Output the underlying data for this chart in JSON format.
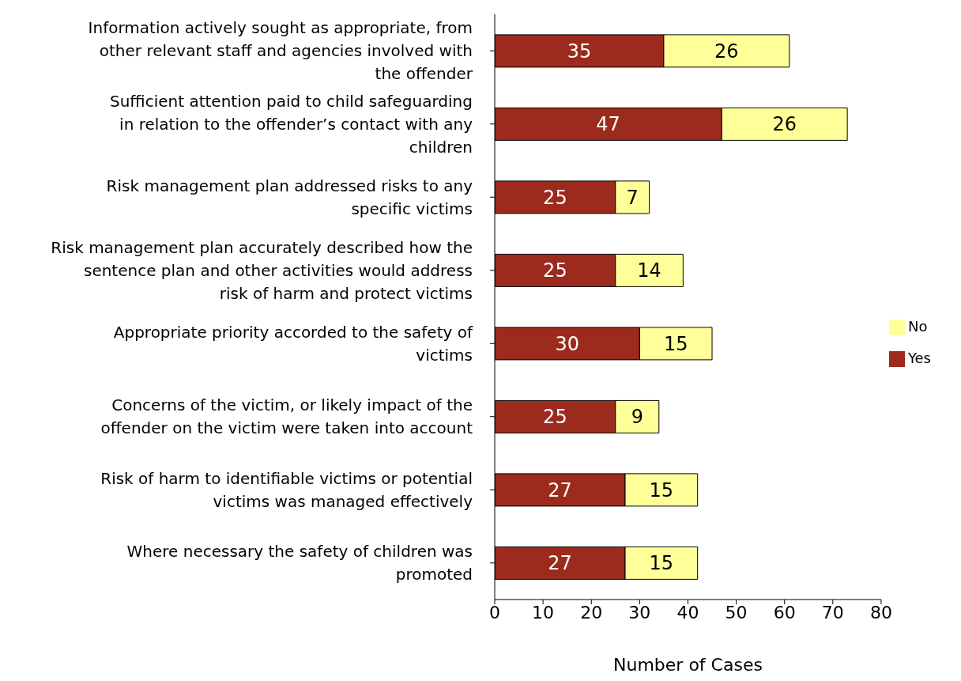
{
  "chart_data": {
    "type": "bar",
    "orientation": "horizontal",
    "stacked": true,
    "xlabel": "Number of Cases",
    "categories": [
      "Information actively sought as appropriate, from other relevant staff and agencies involved with the offender",
      "Sufficient attention paid to child safeguarding in relation to the offender’s contact with any children",
      "Risk management plan addressed risks to any specific victims",
      "Risk management plan accurately described how the sentence plan and other activities would address risk of harm and protect victims",
      "Appropriate priority accorded to the safety of victims",
      "Concerns of the victim, or likely impact of the offender on the victim were taken into account",
      "Risk of harm to identifiable victims or potential victims was managed effectively",
      "Where necessary the safety of children was promoted"
    ],
    "series": [
      {
        "name": "Yes",
        "color": "#9c2b1e",
        "values": [
          35,
          47,
          25,
          25,
          30,
          25,
          27,
          27
        ]
      },
      {
        "name": "No",
        "color": "#ffff99",
        "values": [
          26,
          26,
          7,
          14,
          15,
          9,
          15,
          15
        ]
      }
    ],
    "xlim": [
      0,
      80
    ],
    "xticks": [
      0,
      10,
      20,
      30,
      40,
      50,
      60,
      70,
      80
    ],
    "grid": false,
    "legend": "right",
    "data_labels": true
  }
}
